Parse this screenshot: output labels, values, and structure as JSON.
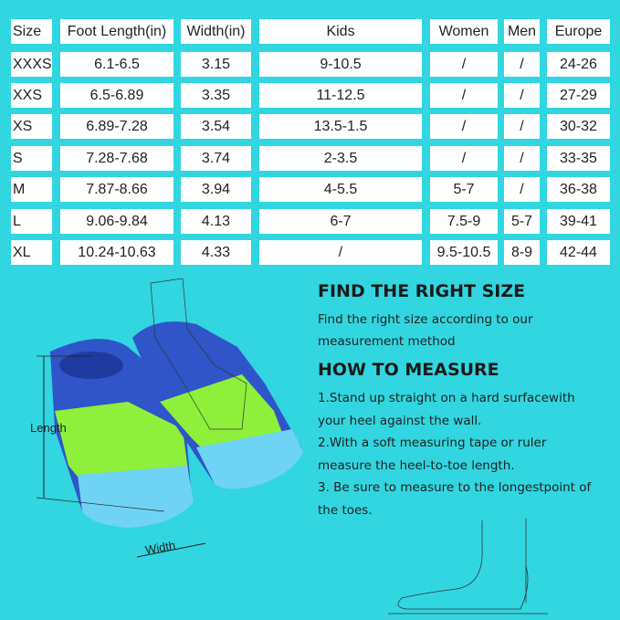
{
  "table": {
    "headers": [
      "Size",
      "Foot Length(in)",
      "Width(in)",
      "Kids",
      "Women",
      "Men",
      "Europe"
    ],
    "rows": [
      [
        "XXXS",
        "6.1-6.5",
        "3.15",
        "9-10.5",
        "/",
        "/",
        "24-26"
      ],
      [
        "XXS",
        "6.5-6.89",
        "3.35",
        "11-12.5",
        "/",
        "/",
        "27-29"
      ],
      [
        "XS",
        "6.89-7.28",
        "3.54",
        "13.5-1.5",
        "/",
        "/",
        "30-32"
      ],
      [
        "S",
        "7.28-7.68",
        "3.74",
        "2-3.5",
        "/",
        "/",
        "33-35"
      ],
      [
        "M",
        "7.87-8.66",
        "3.94",
        "4-5.5",
        "5-7",
        "/",
        "36-38"
      ],
      [
        "L",
        "9.06-9.84",
        "4.13",
        "6-7",
        "7.5-9",
        "5-7",
        "39-41"
      ],
      [
        "XL",
        "10.24-10.63",
        "4.33",
        "/",
        "9.5-10.5",
        "8-9",
        "42-44"
      ]
    ]
  },
  "guide": {
    "title1": "FIND THE RIGHT SIZE",
    "lines1": [
      "Find the right size according to our",
      "measurement method"
    ],
    "title2": "HOW TO MEASURE",
    "lines2": [
      "1.Stand up straight on a hard surfacewith",
      "your heel against the wall.",
      "2.With a soft measuring tape or ruler",
      "measure the heel-to-toe length.",
      "3. Be sure to measure to the longestpoint of",
      "the toes."
    ]
  },
  "illustration": {
    "length_label": "Length",
    "width_label": "Width"
  },
  "colors": {
    "background": "#31d6e0",
    "fin_blue": "#2f55c8",
    "fin_green": "#8ef03a",
    "fin_light": "#6fd3f5"
  }
}
